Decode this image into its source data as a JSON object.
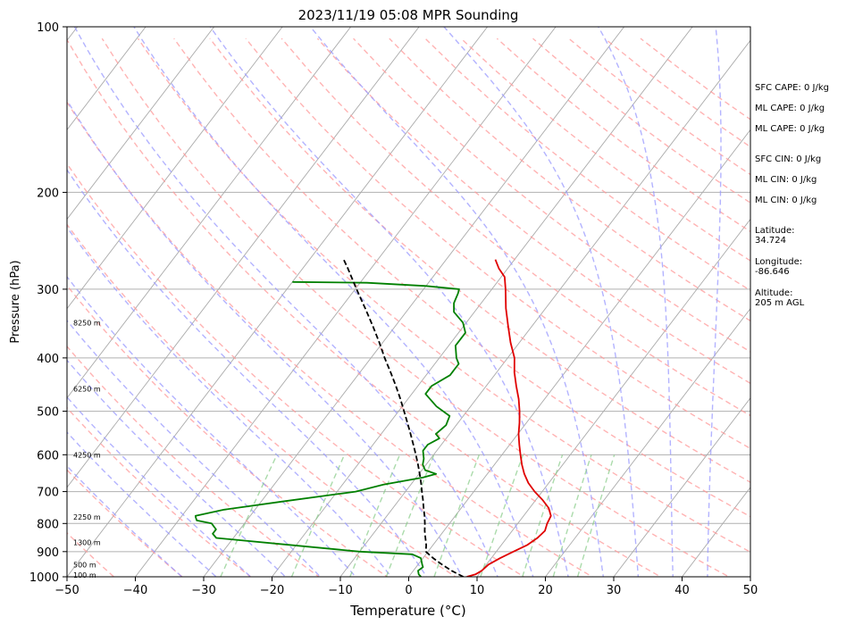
{
  "chart_data": {
    "type": "line",
    "title": "2023/11/19 05:08 MPR Sounding",
    "xlabel": "Temperature (°C)",
    "ylabel": "Pressure (hPa)",
    "xlim": [
      -50,
      50
    ],
    "ylim": [
      1000,
      100
    ],
    "y_scale": "log",
    "x_ticks": [
      "−50",
      "−40",
      "−30",
      "−20",
      "−10",
      "0",
      "10",
      "20",
      "30",
      "40",
      "50"
    ],
    "y_ticks": [
      "100",
      "200",
      "300",
      "400",
      "500",
      "600",
      "700",
      "800",
      "900",
      "1000"
    ],
    "grid": "horizontal pressure lines; skewed isotherms",
    "height_labels": [
      {
        "label": "100 m",
        "p": 993
      },
      {
        "label": "500 m",
        "p": 950
      },
      {
        "label": "1300 m",
        "p": 866
      },
      {
        "label": "2250 m",
        "p": 778
      },
      {
        "label": "4250 m",
        "p": 600
      },
      {
        "label": "6250 m",
        "p": 455
      },
      {
        "label": "8250 m",
        "p": 345
      }
    ],
    "series": [
      {
        "role": "temperature",
        "color": "#e00000",
        "points": [
          [
            1000,
            8.5
          ],
          [
            990,
            9.5
          ],
          [
            975,
            10.0
          ],
          [
            950,
            10.3
          ],
          [
            925,
            11.3
          ],
          [
            900,
            12.5
          ],
          [
            875,
            13.8
          ],
          [
            850,
            14.5
          ],
          [
            825,
            14.8
          ],
          [
            800,
            14.3
          ],
          [
            775,
            14.0
          ],
          [
            750,
            12.8
          ],
          [
            725,
            11.0
          ],
          [
            700,
            8.9
          ],
          [
            675,
            7.0
          ],
          [
            650,
            5.4
          ],
          [
            625,
            4.0
          ],
          [
            600,
            2.7
          ],
          [
            575,
            1.4
          ],
          [
            550,
            0.1
          ],
          [
            525,
            -1.0
          ],
          [
            500,
            -2.3
          ],
          [
            475,
            -3.8
          ],
          [
            450,
            -5.6
          ],
          [
            425,
            -7.4
          ],
          [
            400,
            -9.0
          ],
          [
            375,
            -11.3
          ],
          [
            350,
            -13.5
          ],
          [
            325,
            -15.8
          ],
          [
            300,
            -18.0
          ],
          [
            285,
            -19.5
          ],
          [
            275,
            -21.3
          ],
          [
            265,
            -22.8
          ]
        ]
      },
      {
        "role": "dewpoint",
        "color": "#008000",
        "points": [
          [
            1000,
            1.8
          ],
          [
            990,
            1.2
          ],
          [
            975,
            0.7
          ],
          [
            960,
            1.0
          ],
          [
            950,
            0.6
          ],
          [
            925,
            -0.3
          ],
          [
            910,
            -2.0
          ],
          [
            900,
            -10.0
          ],
          [
            875,
            -21.0
          ],
          [
            850,
            -32.5
          ],
          [
            835,
            -33.5
          ],
          [
            820,
            -33.5
          ],
          [
            800,
            -34.8
          ],
          [
            790,
            -37.3
          ],
          [
            780,
            -37.8
          ],
          [
            775,
            -38.0
          ],
          [
            755,
            -34.5
          ],
          [
            730,
            -27.0
          ],
          [
            700,
            -17.3
          ],
          [
            680,
            -14.0
          ],
          [
            660,
            -9.0
          ],
          [
            650,
            -7.5
          ],
          [
            640,
            -9.5
          ],
          [
            625,
            -10.5
          ],
          [
            610,
            -11.0
          ],
          [
            590,
            -12.0
          ],
          [
            575,
            -12.0
          ],
          [
            560,
            -11.0
          ],
          [
            550,
            -12.0
          ],
          [
            530,
            -11.5
          ],
          [
            510,
            -12.0
          ],
          [
            490,
            -15.0
          ],
          [
            465,
            -18.0
          ],
          [
            450,
            -18.0
          ],
          [
            430,
            -16.5
          ],
          [
            410,
            -16.5
          ],
          [
            400,
            -17.5
          ],
          [
            380,
            -19.0
          ],
          [
            360,
            -19.0
          ],
          [
            345,
            -20.5
          ],
          [
            330,
            -23.0
          ],
          [
            318,
            -24.0
          ],
          [
            305,
            -24.5
          ],
          [
            300,
            -24.8
          ],
          [
            296,
            -30.0
          ],
          [
            292,
            -39.0
          ],
          [
            291,
            -50.0
          ]
        ]
      },
      {
        "role": "parcel path",
        "color": "#000000",
        "points": [
          [
            1000,
            8.0
          ],
          [
            975,
            5.6
          ],
          [
            950,
            3.5
          ],
          [
            925,
            1.5
          ],
          [
            900,
            -0.3
          ],
          [
            875,
            -1.0
          ],
          [
            850,
            -1.9
          ],
          [
            825,
            -2.8
          ],
          [
            800,
            -3.6
          ],
          [
            775,
            -4.5
          ],
          [
            750,
            -5.5
          ],
          [
            725,
            -6.5
          ],
          [
            700,
            -7.6
          ],
          [
            675,
            -8.7
          ],
          [
            650,
            -9.9
          ],
          [
            625,
            -11.2
          ],
          [
            600,
            -12.6
          ],
          [
            575,
            -14.1
          ],
          [
            550,
            -15.7
          ],
          [
            525,
            -17.4
          ],
          [
            500,
            -19.2
          ],
          [
            475,
            -21.1
          ],
          [
            450,
            -23.2
          ],
          [
            425,
            -25.5
          ],
          [
            400,
            -28.0
          ],
          [
            375,
            -30.5
          ],
          [
            350,
            -33.3
          ],
          [
            325,
            -36.4
          ],
          [
            300,
            -39.8
          ],
          [
            275,
            -43.4
          ],
          [
            265,
            -45.0
          ]
        ]
      }
    ],
    "reference_lines": {
      "dry_adiabats_color": "#ff9999",
      "moist_adiabats_color": "#9999ff",
      "mixing_ratio_color": "#88cc88",
      "isotherm_color": "#aaaaaa"
    }
  },
  "side_panel": {
    "sfc_cape": "SFC CAPE: 0 J/kg",
    "ml_cape_1": "ML CAPE: 0 J/kg",
    "ml_cape_2": "ML CAPE: 0 J/kg",
    "sfc_cin": "SFC CIN: 0 J/kg",
    "ml_cin_1": "ML CIN: 0 J/kg",
    "ml_cin_2": "ML CIN: 0 J/kg",
    "latitude_label": "Latitude:",
    "latitude_value": "34.724",
    "longitude_label": "Longitude:",
    "longitude_value": "-86.646",
    "altitude_label": "Altitude:",
    "altitude_value": "205 m AGL"
  }
}
